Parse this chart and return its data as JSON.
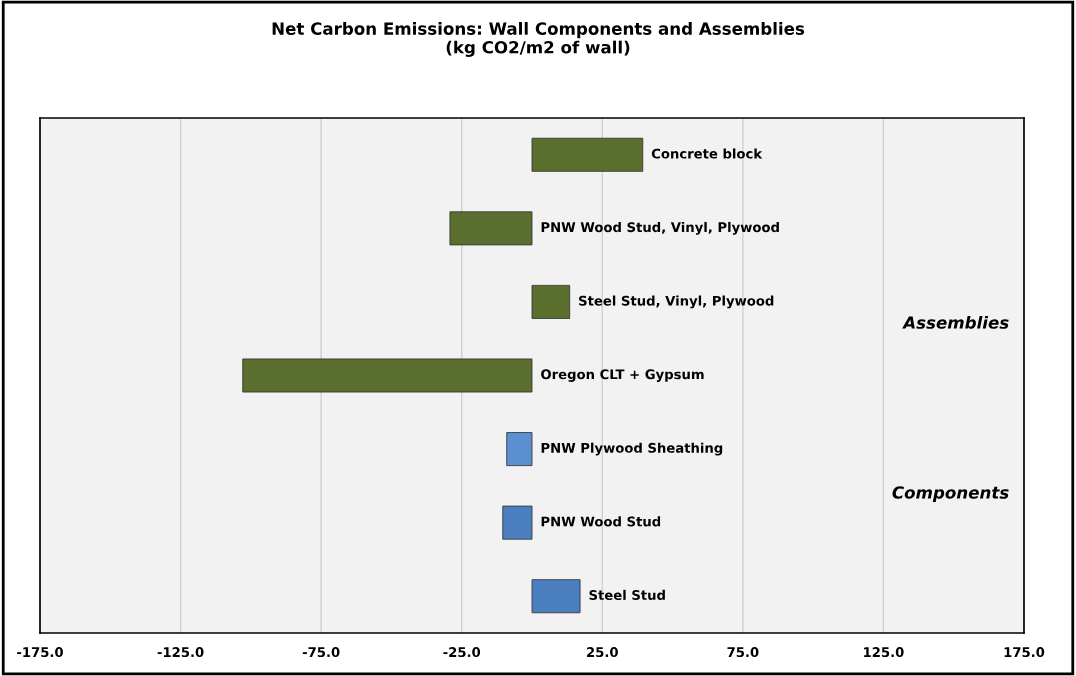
{
  "chart_data": {
    "type": "bar",
    "orientation": "horizontal",
    "title": "Net Carbon Emissions: Wall Components and Assemblies\n(kg CO2/m2 of wall)",
    "categories": [
      "Concrete block",
      "PNW Wood Stud, Vinyl, Plywood",
      "Steel Stud, Vinyl, Plywood",
      "Oregon CLT + Gypsum",
      "PNW Plywood Sheathing",
      "PNW Wood Stud",
      "Steel Stud"
    ],
    "values": [
      39.4,
      -29.2,
      13.4,
      -102.9,
      -9.0,
      -10.4,
      17.1
    ],
    "colors": [
      "#5a6e2e",
      "#5a6e2e",
      "#5a6e2e",
      "#5a6e2e",
      "#5b8fd0",
      "#4a7ebf",
      "#4a7ebf"
    ],
    "xlim": [
      -175,
      175
    ],
    "xticks": [
      {
        "value": -175,
        "label": "-175.0"
      },
      {
        "value": -125,
        "label": "-125.0"
      },
      {
        "value": -75,
        "label": "-75.0"
      },
      {
        "value": -25,
        "label": "-25.0"
      },
      {
        "value": 25,
        "label": "25.0"
      },
      {
        "value": 75,
        "label": "75.0"
      },
      {
        "value": 125,
        "label": "125.0"
      },
      {
        "value": 175,
        "label": "175.0"
      }
    ],
    "grid": "x",
    "annotations": [
      "Assemblies",
      "Components"
    ]
  }
}
